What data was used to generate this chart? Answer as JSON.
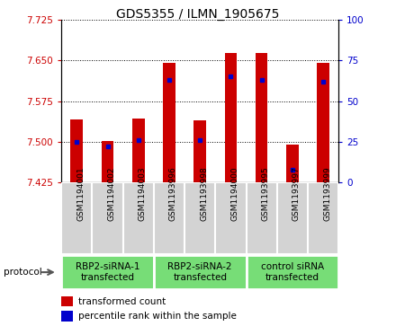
{
  "title": "GDS5355 / ILMN_1905675",
  "samples": [
    "GSM1194001",
    "GSM1194002",
    "GSM1194003",
    "GSM1193996",
    "GSM1193998",
    "GSM1194000",
    "GSM1193995",
    "GSM1193997",
    "GSM1193999"
  ],
  "transformed_counts": [
    7.541,
    7.501,
    7.543,
    7.645,
    7.54,
    7.663,
    7.663,
    7.495,
    7.645
  ],
  "percentile_ranks": [
    25,
    22,
    26,
    63,
    26,
    65,
    63,
    8,
    62
  ],
  "ylim_left": [
    7.425,
    7.725
  ],
  "ylim_right": [
    0,
    100
  ],
  "yticks_left": [
    7.425,
    7.5,
    7.575,
    7.65,
    7.725
  ],
  "yticks_right": [
    0,
    25,
    50,
    75,
    100
  ],
  "groups": [
    {
      "label": "RBP2-siRNA-1\ntransfected",
      "start": 0,
      "end": 2
    },
    {
      "label": "RBP2-siRNA-2\ntransfected",
      "start": 3,
      "end": 5
    },
    {
      "label": "control siRNA\ntransfected",
      "start": 6,
      "end": 8
    }
  ],
  "bar_bottom": 7.425,
  "bar_color": "#CC0000",
  "bar_width": 0.4,
  "percentile_color": "#0000CC",
  "legend_items": [
    {
      "label": "transformed count",
      "color": "#CC0000"
    },
    {
      "label": "percentile rank within the sample",
      "color": "#0000CC"
    }
  ],
  "protocol_label": "protocol",
  "tick_label_color_left": "#CC0000",
  "tick_label_color_right": "#0000CC",
  "sample_bg_color": "#d3d3d3",
  "group_bg_color": "#77DD77",
  "group_border_color": "#ffffff",
  "sample_border_color": "#ffffff"
}
